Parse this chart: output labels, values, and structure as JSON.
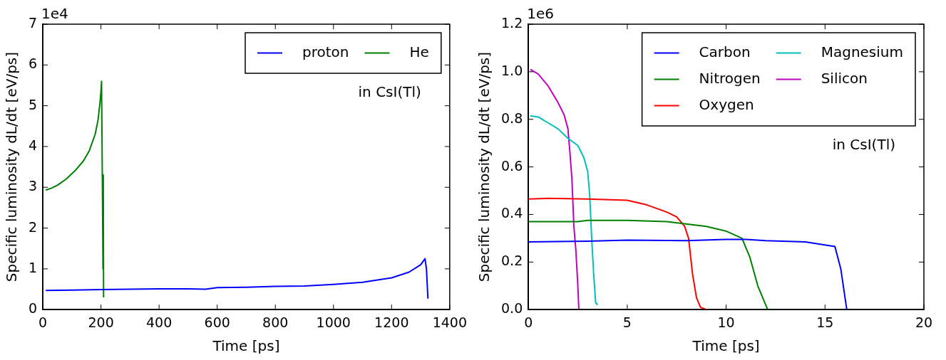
{
  "chart_data": [
    {
      "type": "line",
      "xlabel": "Time [ps]",
      "ylabel": "Specific luminosity dL/dt [eV/ps]",
      "xlim": [
        0,
        1400
      ],
      "xticks": [
        0,
        200,
        400,
        600,
        800,
        1000,
        1200,
        1400
      ],
      "ylim": [
        0,
        7
      ],
      "yticks": [
        0,
        1,
        2,
        3,
        4,
        5,
        6,
        7
      ],
      "legend": "top right",
      "annotations": [
        "1e4",
        "in CsI(Tl)"
      ],
      "series": [
        {
          "name": "proton",
          "color": "#0000ff",
          "x": [
            10,
            100,
            200,
            300,
            400,
            500,
            560,
            600,
            700,
            800,
            900,
            1000,
            1100,
            1200,
            1260,
            1300,
            1315,
            1320,
            1325
          ],
          "values": [
            0.47,
            0.48,
            0.49,
            0.5,
            0.51,
            0.51,
            0.5,
            0.54,
            0.55,
            0.57,
            0.58,
            0.62,
            0.67,
            0.78,
            0.92,
            1.1,
            1.25,
            1.0,
            0.27
          ]
        },
        {
          "name": "He",
          "color": "#008000",
          "x": [
            10,
            30,
            50,
            80,
            110,
            140,
            160,
            180,
            190,
            197,
            200,
            202,
            205,
            207,
            208,
            209
          ],
          "values": [
            2.93,
            2.98,
            3.05,
            3.2,
            3.4,
            3.65,
            3.9,
            4.3,
            4.65,
            5.1,
            5.35,
            5.6,
            3.0,
            1.0,
            3.3,
            0.3
          ]
        }
      ]
    },
    {
      "type": "line",
      "xlabel": "Time [ps]",
      "ylabel": "Specific luminosity dL/dt [eV/ps]",
      "xlim": [
        0,
        20
      ],
      "xticks": [
        0,
        5,
        10,
        15,
        20
      ],
      "ylim": [
        0,
        1.2
      ],
      "yticks": [
        {
          "value": 0,
          "label": "0.0"
        },
        0.2,
        0.4,
        0.6,
        0.8,
        {
          "value": 1,
          "label": "1.0"
        },
        1.2
      ],
      "legend": "top right",
      "annotations": [
        "1e6",
        "in CsI(Tl)"
      ],
      "series": [
        {
          "name": "Carbon",
          "color": "#0000ff",
          "x": [
            0,
            3,
            5,
            8,
            10,
            11,
            12,
            14,
            15.5,
            15.8,
            16.1
          ],
          "values": [
            0.285,
            0.288,
            0.292,
            0.29,
            0.295,
            0.295,
            0.29,
            0.285,
            0.265,
            0.17,
            0
          ]
        },
        {
          "name": "Nitrogen",
          "color": "#008000",
          "x": [
            0,
            2.5,
            3,
            5,
            7,
            9,
            10,
            10.8,
            11.2,
            11.6,
            12.1
          ],
          "values": [
            0.37,
            0.37,
            0.375,
            0.375,
            0.37,
            0.35,
            0.33,
            0.3,
            0.22,
            0.1,
            0
          ]
        },
        {
          "name": "Oxygen",
          "color": "#ff0000",
          "x": [
            0,
            1,
            3,
            5,
            6,
            7,
            7.5,
            7.9,
            8.1,
            8.3,
            8.5,
            8.7,
            9
          ],
          "values": [
            0.465,
            0.468,
            0.465,
            0.46,
            0.44,
            0.41,
            0.39,
            0.35,
            0.3,
            0.15,
            0.05,
            0.01,
            0
          ]
        },
        {
          "name": "Magnesium",
          "color": "#00bfbf",
          "x": [
            0.1,
            0.5,
            1,
            1.5,
            2,
            2.5,
            2.8,
            3,
            3.1,
            3.2,
            3.3,
            3.4,
            3.5
          ],
          "values": [
            0.815,
            0.81,
            0.785,
            0.76,
            0.72,
            0.69,
            0.64,
            0.58,
            0.48,
            0.3,
            0.15,
            0.03,
            0.02
          ]
        },
        {
          "name": "Silicon",
          "color": "#bf00bf",
          "x": [
            0.1,
            0.5,
            1,
            1.5,
            1.8,
            2,
            2.1,
            2.2,
            2.25,
            2.3,
            2.4,
            2.5,
            2.55
          ],
          "values": [
            1.01,
            0.99,
            0.94,
            0.87,
            0.82,
            0.76,
            0.66,
            0.55,
            0.45,
            0.35,
            0.25,
            0.1,
            0
          ]
        }
      ]
    }
  ]
}
